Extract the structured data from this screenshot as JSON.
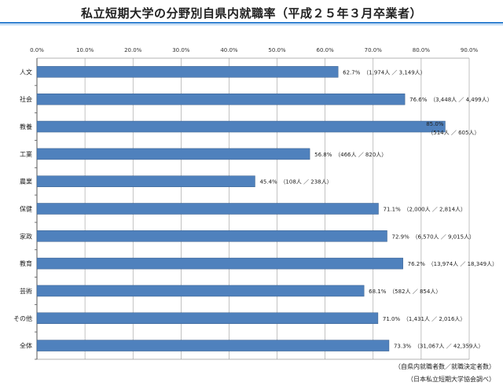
{
  "page": {
    "title": "私立短期大学の分野別自県内就職率（平成２５年３月卒業者）",
    "legend_note": "（自県内就職者数／就職決定者数）",
    "source_note": "（日本私立短期大学協会調べ）"
  },
  "colors": {
    "bar": "#4f81bd",
    "bar_edge": "#385d8a",
    "grid": "#9a9a9a",
    "rule": "#2f7fd0"
  },
  "chart_data": {
    "type": "bar",
    "orientation": "horizontal",
    "title": "私立短期大学の分野別自県内就職率（平成２５年３月卒業者）",
    "xlim": [
      0,
      90
    ],
    "x_ticks": [
      "0.0%",
      "10.0%",
      "20.0%",
      "30.0%",
      "40.0%",
      "50.0%",
      "60.0%",
      "70.0%",
      "80.0%",
      "90.0%"
    ],
    "grid": true,
    "categories": [
      "人文",
      "社会",
      "教養",
      "工業",
      "農業",
      "保健",
      "家政",
      "教育",
      "芸術",
      "その他",
      "全体"
    ],
    "values": [
      62.7,
      76.6,
      85.0,
      56.8,
      45.4,
      71.1,
      72.9,
      76.2,
      68.1,
      71.0,
      73.3
    ],
    "value_labels": [
      "62.7%",
      "76.6%",
      "85.0%",
      "56.8%",
      "45.4%",
      "71.1%",
      "72.9%",
      "76.2%",
      "68.1%",
      "71.0%",
      "73.3%"
    ],
    "count_labels": [
      "（1,974人 ／ 3,149人）",
      "（3,448人 ／ 4,499人）",
      "（514人 ／ 605人）",
      "（466人 ／ 820人）",
      "（108人 ／ 238人）",
      "（2,000人 ／ 2,814人）",
      "（6,570人 ／ 9,015人）",
      "（13,974人 ／ 18,349人）",
      "（582人 ／ 854人）",
      "（1,431人 ／ 2,016人）",
      "（31,067人 ／ 42,359人）"
    ]
  }
}
